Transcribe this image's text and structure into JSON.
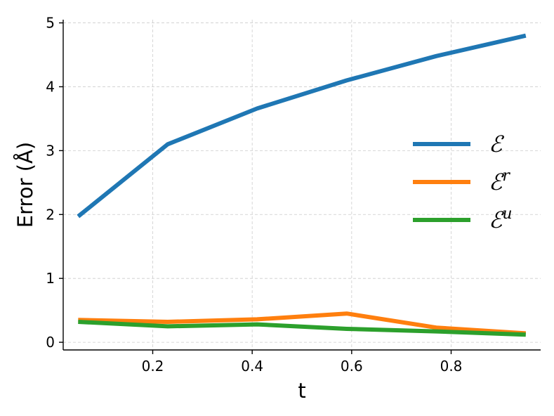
{
  "chart_data": {
    "type": "line",
    "xlabel": "t",
    "ylabel": "Error (Å)",
    "xlim": [
      0.02,
      0.98
    ],
    "ylim": [
      -0.12,
      5.05
    ],
    "x_ticks": [
      0.2,
      0.4,
      0.6,
      0.8
    ],
    "x_tick_labels": [
      "0.2",
      "0.4",
      "0.6",
      "0.8"
    ],
    "y_ticks": [
      0,
      1,
      2,
      3,
      4,
      5
    ],
    "y_tick_labels": [
      "0",
      "1",
      "2",
      "3",
      "4",
      "5"
    ],
    "grid": true,
    "legend_position": "center-right",
    "x": [
      0.05,
      0.23,
      0.41,
      0.59,
      0.77,
      0.95
    ],
    "series": [
      {
        "name": "ℰ",
        "base": "ℰ",
        "sup": "",
        "color": "#1f77b4",
        "values": [
          1.97,
          3.1,
          3.66,
          4.1,
          4.48,
          4.8
        ]
      },
      {
        "name": "ℰʳ",
        "base": "ℰ",
        "sup": "r",
        "color": "#ff7f0e",
        "values": [
          0.35,
          0.32,
          0.36,
          0.45,
          0.23,
          0.14
        ]
      },
      {
        "name": "ℰᵘ",
        "base": "ℰ",
        "sup": "u",
        "color": "#2ca02c",
        "values": [
          0.32,
          0.25,
          0.28,
          0.21,
          0.17,
          0.12
        ]
      }
    ]
  }
}
